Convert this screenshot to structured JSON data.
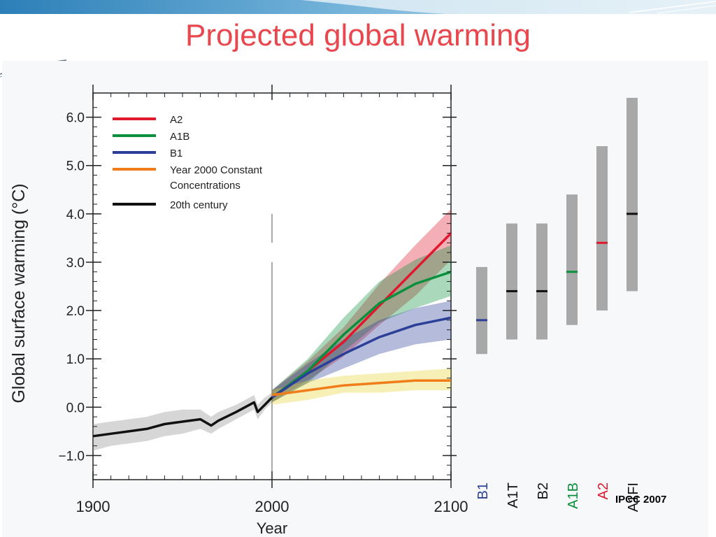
{
  "slide": {
    "title": "Projected global warming",
    "source": "IPCC 2007"
  },
  "colors": {
    "title": "#e8474e",
    "A2": "#e0182d",
    "A1B": "#0a8f3c",
    "B1": "#2c3f98",
    "constant": "#f07d1a",
    "century20": "#111111",
    "range_bar": "#a8a8a8"
  },
  "chart_data": [
    {
      "type": "line",
      "xlabel": "Year",
      "ylabel": "Global surface warming (°C)",
      "xlim": [
        1900,
        2100
      ],
      "ylim": [
        -1.5,
        6.5
      ],
      "xticks": [
        "1900",
        "2000",
        "2100"
      ],
      "yticks": [
        "−1.0",
        "0.0",
        "1.0",
        "2.0",
        "3.0",
        "4.0",
        "5.0",
        "6.0"
      ],
      "ytick_values": [
        -1,
        0,
        1,
        2,
        3,
        4,
        5,
        6
      ],
      "legend_position": "top-left",
      "series": [
        {
          "name": "A2",
          "color_key": "A2",
          "x": [
            2000,
            2020,
            2040,
            2060,
            2080,
            2100
          ],
          "values": [
            0.2,
            0.75,
            1.35,
            2.1,
            2.85,
            3.6
          ],
          "band_lower": [
            0.1,
            0.55,
            1.05,
            1.7,
            2.3,
            3.05
          ],
          "band_upper": [
            0.35,
            0.95,
            1.65,
            2.55,
            3.35,
            4.1
          ]
        },
        {
          "name": "A1B",
          "color_key": "A1B",
          "x": [
            2000,
            2020,
            2040,
            2060,
            2080,
            2100
          ],
          "values": [
            0.2,
            0.75,
            1.5,
            2.15,
            2.55,
            2.8
          ],
          "band_lower": [
            0.1,
            0.5,
            1.15,
            1.75,
            2.05,
            2.3
          ],
          "band_upper": [
            0.35,
            1.0,
            1.85,
            2.6,
            3.05,
            3.35
          ]
        },
        {
          "name": "B1",
          "color_key": "B1",
          "x": [
            2000,
            2020,
            2040,
            2060,
            2080,
            2100
          ],
          "values": [
            0.2,
            0.7,
            1.1,
            1.45,
            1.7,
            1.85
          ],
          "band_lower": [
            0.1,
            0.5,
            0.8,
            1.1,
            1.3,
            1.4
          ],
          "band_upper": [
            0.35,
            0.9,
            1.4,
            1.8,
            2.05,
            2.2
          ]
        },
        {
          "name": "Year 2000 Constant Concentrations",
          "color_key": "constant",
          "x": [
            2000,
            2020,
            2040,
            2060,
            2080,
            2100
          ],
          "values": [
            0.25,
            0.35,
            0.45,
            0.5,
            0.55,
            0.55
          ],
          "band_lower": [
            0.05,
            0.15,
            0.3,
            0.3,
            0.35,
            0.35
          ],
          "band_upper": [
            0.35,
            0.55,
            0.65,
            0.7,
            0.75,
            0.8
          ]
        },
        {
          "name": "20th century",
          "color_key": "century20",
          "x": [
            1900,
            1910,
            1920,
            1930,
            1940,
            1950,
            1960,
            1966,
            1970,
            1980,
            1990,
            1992,
            1996,
            2000
          ],
          "values": [
            -0.6,
            -0.55,
            -0.5,
            -0.45,
            -0.35,
            -0.3,
            -0.25,
            -0.38,
            -0.28,
            -0.1,
            0.1,
            -0.1,
            0.05,
            0.2
          ],
          "band_lower": [
            -0.9,
            -0.8,
            -0.75,
            -0.7,
            -0.6,
            -0.55,
            -0.45,
            -0.55,
            -0.45,
            -0.25,
            -0.05,
            -0.25,
            -0.05,
            0.1
          ],
          "band_upper": [
            -0.35,
            -0.3,
            -0.25,
            -0.2,
            -0.1,
            -0.05,
            -0.05,
            -0.2,
            -0.1,
            0.05,
            0.25,
            0.05,
            0.2,
            0.3
          ]
        }
      ]
    },
    {
      "type": "bar",
      "ylim": [
        -1.5,
        6.5
      ],
      "categories": [
        "B1",
        "A1T",
        "B2",
        "A1B",
        "A2",
        "A1FI"
      ],
      "category_colors": [
        "B1",
        "century20",
        "century20",
        "A1B",
        "A2",
        "century20"
      ],
      "low": [
        1.1,
        1.4,
        1.4,
        1.7,
        2.0,
        2.4
      ],
      "high": [
        2.9,
        3.8,
        3.8,
        4.4,
        5.4,
        6.4
      ],
      "best": [
        1.8,
        2.4,
        2.4,
        2.8,
        3.4,
        4.0
      ]
    }
  ]
}
